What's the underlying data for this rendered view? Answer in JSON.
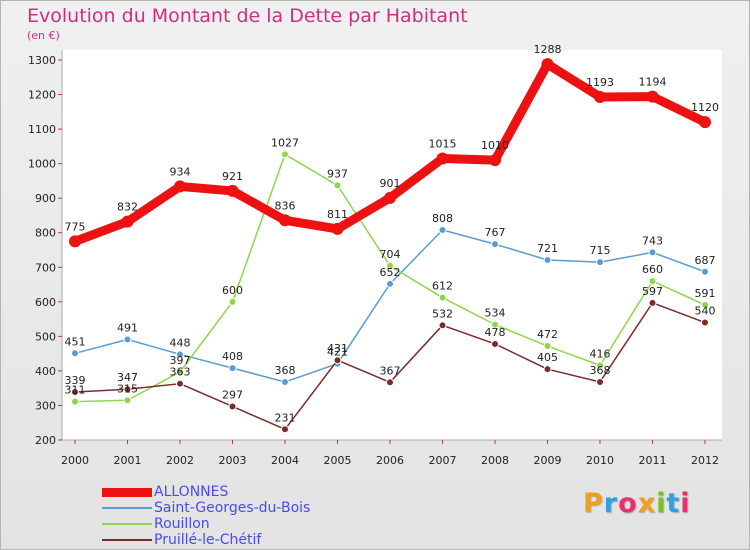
{
  "page": {
    "title": "Evolution du Montant de la Dette par Habitant",
    "unit": "(en €)",
    "brand": "Proxiti",
    "brand_colors": [
      "#f0a020",
      "#2fa0e0",
      "#e83070",
      "#f0a020",
      "#79c020",
      "#2fa0e0",
      "#e83070"
    ]
  },
  "chart_data": {
    "type": "line",
    "title": "Evolution du Montant de la Dette par Habitant",
    "ylabel": "(en €)",
    "xlabel": "",
    "x": [
      "2000",
      "2001",
      "2002",
      "2003",
      "2004",
      "2005",
      "2006",
      "2007",
      "2008",
      "2009",
      "2010",
      "2011",
      "2012"
    ],
    "ylim": [
      200,
      1300
    ],
    "yticks": [
      200,
      300,
      400,
      500,
      600,
      700,
      800,
      900,
      1000,
      1100,
      1200,
      1300
    ],
    "grid": false,
    "legend_position": "bottom-left",
    "series": [
      {
        "name": "ALLONNES",
        "color": "#ee1111",
        "emphasis": true,
        "values": [
          775,
          832,
          934,
          921,
          836,
          811,
          901,
          1015,
          1010,
          1288,
          1193,
          1194,
          1120
        ],
        "labels": [
          "775",
          "832",
          "934",
          "921",
          "836",
          "811",
          "901",
          "1015",
          "1010",
          "1288",
          "1193",
          "1194",
          "1120"
        ]
      },
      {
        "name": "Saint-Georges-du-Bois",
        "color": "#5b9bd5",
        "values": [
          451,
          491,
          448,
          408,
          368,
          421,
          652,
          808,
          767,
          721,
          715,
          743,
          687
        ],
        "labels": [
          "451",
          "491",
          "448",
          "408",
          "368",
          "421",
          "652",
          "808",
          "767",
          "721",
          "715",
          "743",
          "687"
        ]
      },
      {
        "name": "Rouillon",
        "color": "#8ed64a",
        "values": [
          311,
          315,
          397,
          600,
          1027,
          937,
          704,
          612,
          534,
          472,
          416,
          660,
          591
        ],
        "labels": [
          "311",
          "315",
          "397",
          "600",
          "1027",
          "937",
          "704",
          "612",
          "534",
          "472",
          "416",
          "660",
          "591"
        ]
      },
      {
        "name": "Pruillé-le-Chétif",
        "color": "#7a2b2b",
        "values": [
          339,
          347,
          363,
          297,
          231,
          431,
          367,
          532,
          478,
          405,
          368,
          597,
          540
        ],
        "labels": [
          "339",
          "347",
          "363",
          "297",
          "231",
          "431",
          "367",
          "532",
          "478",
          "405",
          "368",
          "597",
          "540"
        ]
      }
    ]
  }
}
